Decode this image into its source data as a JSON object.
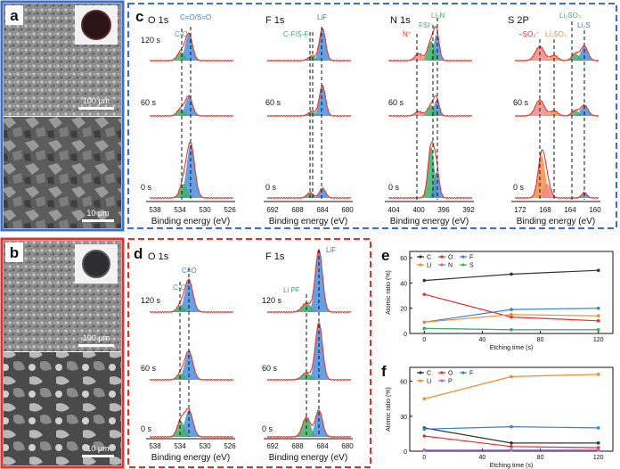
{
  "panel_letters": {
    "a": "a",
    "b": "b",
    "c": "c",
    "d": "d",
    "e": "e",
    "f": "f"
  },
  "sem": {
    "a_top_scale": "100 μm",
    "a_bottom_scale": "10 μm",
    "b_top_scale": "100 μm",
    "b_bottom_scale": "10 μm"
  },
  "colors": {
    "blue_frame": "#3a6fd0",
    "red_frame": "#e0312e",
    "fit_red": "#e33a32",
    "fill_blue": "#4a8fe0",
    "fill_green": "#3fae6a",
    "fill_pink": "#f08a8a",
    "fill_orange": "#f0914a",
    "label_green": "#3fae6a",
    "label_blue": "#3a7fd6",
    "label_red": "#e0312e",
    "label_orange": "#f0914a"
  },
  "xps_c": {
    "xlabel": "Binding energy (eV)",
    "times": [
      "120 s",
      "60 s",
      "0 s"
    ],
    "O": {
      "title": "O 1s",
      "ticks": [
        "538",
        "534",
        "530",
        "526"
      ],
      "labels": [
        "C=O/S=O",
        "C-O"
      ]
    },
    "F": {
      "title": "F 1s",
      "ticks": [
        "692",
        "688",
        "684",
        "680"
      ],
      "labels": [
        "LiF",
        "C-F/S-F"
      ]
    },
    "N": {
      "title": "N 1s",
      "ticks": [
        "404",
        "400",
        "396",
        "392"
      ],
      "labels": [
        "Li₃N",
        "FSI⁻",
        "N⁺"
      ]
    },
    "S": {
      "title": "S 2P",
      "ticks": [
        "172",
        "168",
        "164",
        "160"
      ],
      "labels": [
        "Li₂SO₃",
        "Li₂S",
        "−SO₂⁻",
        "Li₂SO₃"
      ]
    }
  },
  "xps_d": {
    "xlabel": "Binding energy (eV)",
    "times": [
      "120 s",
      "60 s",
      "0 s"
    ],
    "O": {
      "title": "O 1s",
      "ticks": [
        "538",
        "534",
        "530",
        "526"
      ],
      "labels": [
        "C=O",
        "C-O"
      ]
    },
    "F": {
      "title": "F 1s",
      "ticks": [
        "692",
        "688",
        "684",
        "680"
      ],
      "labels": [
        "LiF",
        "Li PF"
      ]
    }
  },
  "chart_data": [
    {
      "id": "e",
      "type": "line",
      "xlabel": "Etching time (s)",
      "ylabel": "Atomic ratio (%)",
      "x": [
        0,
        60,
        120
      ],
      "xticks": [
        "0",
        "40",
        "80",
        "120"
      ],
      "yticks": [
        "0",
        "20",
        "40",
        "60"
      ],
      "xlim": [
        -10,
        130
      ],
      "ylim": [
        0,
        65
      ],
      "series": [
        {
          "name": "C",
          "color": "#333333",
          "values": [
            42,
            47,
            50
          ]
        },
        {
          "name": "O",
          "color": "#e0312e",
          "values": [
            31,
            13,
            10
          ]
        },
        {
          "name": "F",
          "color": "#3a7fd6",
          "values": [
            9,
            19,
            20
          ]
        },
        {
          "name": "Li",
          "color": "#f08a2a",
          "values": [
            9,
            15,
            14
          ]
        },
        {
          "name": "N",
          "color": "#a070d0",
          "values": [
            4,
            3,
            3
          ]
        },
        {
          "name": "S",
          "color": "#3fae6a",
          "values": [
            4,
            3,
            3
          ]
        }
      ]
    },
    {
      "id": "f",
      "type": "line",
      "xlabel": "Etching time (s)",
      "ylabel": "Atomic ratio (%)",
      "x": [
        0,
        60,
        120
      ],
      "xticks": [
        "0",
        "40",
        "80",
        "120"
      ],
      "yticks": [
        "0",
        "30",
        "60"
      ],
      "xlim": [
        -10,
        130
      ],
      "ylim": [
        0,
        72
      ],
      "series": [
        {
          "name": "C",
          "color": "#333333",
          "values": [
            20,
            7,
            7
          ]
        },
        {
          "name": "O",
          "color": "#e0312e",
          "values": [
            13,
            4,
            3
          ]
        },
        {
          "name": "F",
          "color": "#3a7fd6",
          "values": [
            19,
            21,
            20
          ]
        },
        {
          "name": "Li",
          "color": "#f08a2a",
          "values": [
            45,
            64,
            66
          ]
        },
        {
          "name": "P",
          "color": "#a070d0",
          "values": [
            1,
            1,
            1
          ]
        }
      ]
    }
  ]
}
